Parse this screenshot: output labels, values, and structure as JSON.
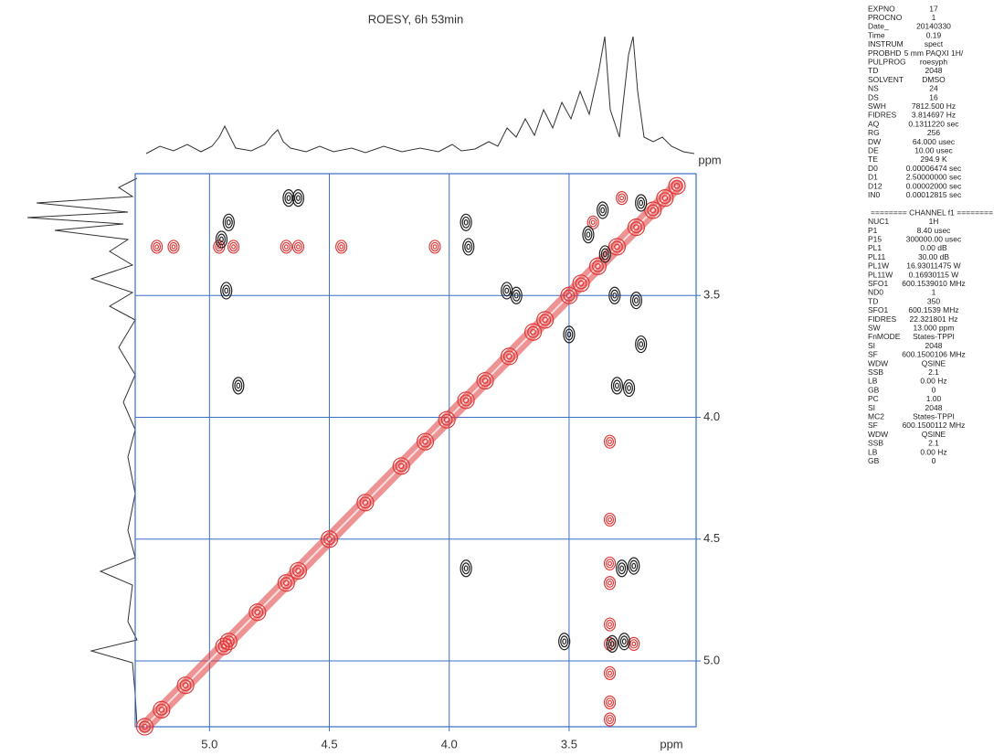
{
  "chart_data": {
    "type": "nmr2d",
    "title": "ROESY, 6h 53min",
    "xlabel": "ppm",
    "ylabel": "ppm",
    "xlim": [
      5.31,
      2.97
    ],
    "ylim": [
      3.0,
      5.27
    ],
    "xticks": [
      {
        "value": 5,
        "label": "5.0"
      },
      4.5,
      {
        "value": 4,
        "label": "4.0"
      },
      3.5
    ],
    "yticks": [
      3.5,
      {
        "value": 4,
        "label": "4.0"
      },
      4.5,
      {
        "value": 5,
        "label": "5.0"
      }
    ],
    "grid": true,
    "diagonal": {
      "color": "#e03a3a",
      "x": [
        5.27,
        5.2,
        5.1,
        4.94,
        4.92,
        4.8,
        4.68,
        4.63,
        4.5,
        4.35,
        4.2,
        4.1,
        4.01,
        3.93,
        3.85,
        3.75,
        3.65,
        3.6,
        3.5,
        3.45,
        3.38,
        3.3,
        3.22,
        3.15,
        3.1,
        3.05
      ],
      "y": [
        5.27,
        5.2,
        5.1,
        4.94,
        4.92,
        4.8,
        4.68,
        4.63,
        4.5,
        4.35,
        4.2,
        4.1,
        4.01,
        3.93,
        3.85,
        3.75,
        3.65,
        3.6,
        3.5,
        3.45,
        3.38,
        3.3,
        3.22,
        3.15,
        3.1,
        3.05
      ]
    },
    "positive": {
      "color": "#e03a3a",
      "x": [
        5.22,
        5.15,
        4.96,
        4.9,
        4.68,
        4.63,
        4.45,
        4.06,
        3.33,
        3.33,
        3.33,
        3.33,
        3.33,
        3.33,
        3.33,
        3.33,
        3.33,
        3.23,
        3.4,
        3.28
      ],
      "y": [
        3.3,
        3.3,
        3.3,
        3.3,
        3.3,
        3.3,
        3.3,
        3.3,
        4.1,
        4.42,
        4.6,
        4.68,
        4.85,
        4.93,
        5.05,
        5.17,
        5.24,
        4.93,
        3.2,
        3.1
      ]
    },
    "negative": {
      "color": "#222222",
      "x": [
        4.67,
        4.63,
        4.92,
        4.95,
        4.93,
        3.93,
        3.92,
        3.76,
        3.72,
        3.5,
        3.36,
        3.35,
        3.31,
        3.22,
        3.2,
        3.42,
        3.3,
        3.25,
        4.88,
        3.93,
        3.23,
        3.28,
        3.52,
        3.32,
        3.27,
        3.2
      ],
      "y": [
        3.1,
        3.1,
        3.2,
        3.27,
        3.48,
        3.2,
        3.3,
        3.48,
        3.5,
        3.66,
        3.15,
        3.33,
        3.5,
        3.52,
        3.12,
        3.25,
        3.87,
        3.88,
        3.87,
        4.62,
        4.61,
        4.62,
        4.92,
        4.93,
        4.92,
        3.7
      ]
    },
    "parameters": [
      [
        "EXPNO",
        "17"
      ],
      [
        "PROCNO",
        "1"
      ],
      [
        "Date_",
        "20140330"
      ],
      [
        "Time",
        "0.19"
      ],
      [
        "INSTRUM",
        "spect"
      ],
      [
        "PROBHD",
        "5 mm PAQXI 1H/"
      ],
      [
        "PULPROG",
        "roesyph"
      ],
      [
        "TD",
        "2048"
      ],
      [
        "SOLVENT",
        "DMSO"
      ],
      [
        "NS",
        "24"
      ],
      [
        "DS",
        "16"
      ],
      [
        "SWH",
        "7812.500 Hz"
      ],
      [
        "FIDRES",
        "3.814697 Hz"
      ],
      [
        "AQ",
        "0.1311220 sec"
      ],
      [
        "RG",
        "256"
      ],
      [
        "DW",
        "64.000 usec"
      ],
      [
        "DE",
        "10.00 usec"
      ],
      [
        "TE",
        "294.9 K"
      ],
      [
        "D0",
        "0.00006474 sec"
      ],
      [
        "D1",
        "2.50000000 sec"
      ],
      [
        "D12",
        "0.00002000 sec"
      ],
      [
        "IN0",
        "0.00012815 sec"
      ]
    ],
    "channel_header": "======== CHANNEL f1 ========",
    "channel_parameters": [
      [
        "NUC1",
        "1H"
      ],
      [
        "P1",
        "8.40 usec"
      ],
      [
        "P15",
        "300000.00 usec"
      ],
      [
        "PL1",
        "0.00 dB"
      ],
      [
        "PL11",
        "30.00 dB"
      ],
      [
        "PL1W",
        "16.93011475 W"
      ],
      [
        "PL11W",
        "0.16930115 W"
      ],
      [
        "SFO1",
        "600.1539010 MHz"
      ],
      [
        "ND0",
        "1"
      ],
      [
        "TD",
        "350"
      ],
      [
        "SFO1",
        "600.1539 MHz"
      ],
      [
        "FIDRES",
        "22.321801 Hz"
      ],
      [
        "SW",
        "13.000 ppm"
      ],
      [
        "FnMODE",
        "States-TPPI"
      ],
      [
        "SI",
        "2048"
      ],
      [
        "SF",
        "600.1500106 MHz"
      ],
      [
        "WDW",
        "QSINE"
      ],
      [
        "SSB",
        "2.1"
      ],
      [
        "LB",
        "0.00 Hz"
      ],
      [
        "GB",
        "0"
      ],
      [
        "PC",
        "1.00"
      ],
      [
        "SI",
        "2048"
      ],
      [
        "MC2",
        "States-TPPI"
      ],
      [
        "SF",
        "600.1500112 MHz"
      ],
      [
        "WDW",
        "QSINE"
      ],
      [
        "SSB",
        "2.1"
      ],
      [
        "LB",
        "0.00 Hz"
      ],
      [
        "GB",
        "0"
      ]
    ]
  }
}
